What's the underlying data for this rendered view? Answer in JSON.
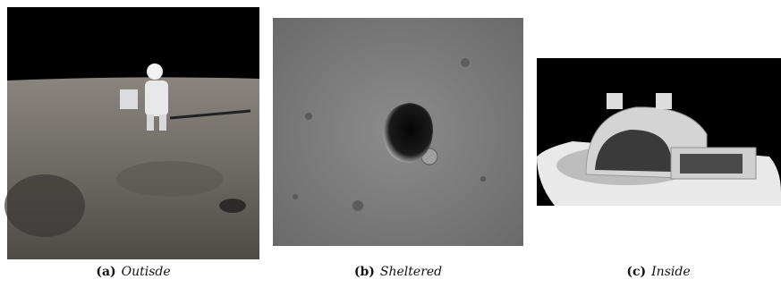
{
  "figure": {
    "panels": [
      {
        "label": "(a)",
        "caption": "Outisde"
      },
      {
        "label": "(b)",
        "caption": "Sheltered"
      },
      {
        "label": "(c)",
        "caption": "Inside"
      }
    ]
  }
}
